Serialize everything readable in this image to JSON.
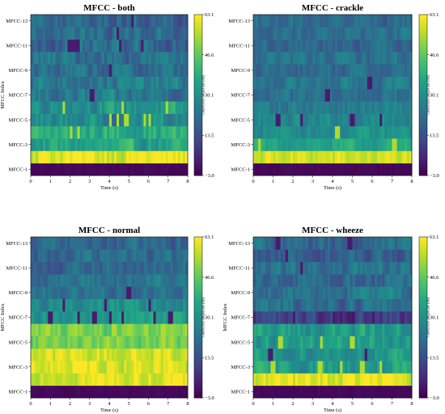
{
  "figure": {
    "colormap": "viridis"
  },
  "chart_data": [
    {
      "type": "heatmap",
      "title": "MFCC - both",
      "xlabel": "Time (s)",
      "ylabel": "MFCC Index",
      "xticks": [
        "0",
        "1",
        "2",
        "3",
        "4",
        "5",
        "6",
        "7",
        "8"
      ],
      "yticks": [
        "MFCC-1",
        "MFCC-3",
        "MFCC-5",
        "MFCC-7",
        "MFCC-9",
        "MFCC-11",
        "MFCC-13"
      ],
      "xlim": [
        0,
        8
      ],
      "rows": 13,
      "colorbar": {
        "label": "Coefficient Amplitude (dB)",
        "ticks": [
          "63.1",
          "46.6",
          "30.1",
          "13.5",
          "−3.0"
        ],
        "range": [
          -3.0,
          63.1
        ]
      },
      "row_levels": [
        0.02,
        0.97,
        0.57,
        0.62,
        0.48,
        0.52,
        0.4,
        0.42,
        0.36,
        0.38,
        0.34,
        0.36,
        0.33
      ],
      "variation": 0.17,
      "hotspots": [
        [
          3,
          0.25
        ],
        [
          3,
          0.3
        ],
        [
          4,
          0.5
        ],
        [
          4,
          0.55
        ],
        [
          4,
          0.6
        ],
        [
          4,
          0.72
        ],
        [
          4,
          0.75
        ],
        [
          5,
          0.2
        ],
        [
          5,
          0.58
        ],
        [
          5,
          0.86
        ]
      ],
      "darkspots": [
        [
          10,
          0.24
        ],
        [
          10,
          0.27
        ],
        [
          10,
          0.3
        ],
        [
          10,
          0.56
        ],
        [
          10,
          0.7
        ],
        [
          6,
          0.38
        ],
        [
          8,
          0.5
        ],
        [
          11,
          0.55
        ],
        [
          12,
          0.64
        ]
      ]
    },
    {
      "type": "heatmap",
      "title": "MFCC - crackle",
      "xlabel": "Time (s)",
      "ylabel": "",
      "xticks": [
        "0",
        "1",
        "2",
        "3",
        "4",
        "5",
        "6",
        "7",
        "8"
      ],
      "yticks": [
        "MFCC-1",
        "MFCC-3",
        "MFCC-5",
        "MFCC-7",
        "MFCC-9",
        "MFCC-11",
        "MFCC-13"
      ],
      "xlim": [
        0,
        8
      ],
      "rows": 13,
      "colorbar": {
        "label": "Coefficient Amplitude (dB)",
        "ticks": [
          "63.1",
          "46.6",
          "30.1",
          "13.5",
          "−3.0"
        ],
        "range": [
          -3.0,
          63.1
        ]
      },
      "row_levels": [
        0.02,
        0.92,
        0.58,
        0.5,
        0.46,
        0.42,
        0.36,
        0.4,
        0.36,
        0.38,
        0.35,
        0.37,
        0.35
      ],
      "variation": 0.12,
      "hotspots": [
        [
          2,
          0.03
        ],
        [
          2,
          0.88
        ],
        [
          3,
          0.52
        ]
      ],
      "darkspots": [
        [
          4,
          0.15
        ],
        [
          4,
          0.3
        ],
        [
          4,
          0.62
        ],
        [
          4,
          0.8
        ],
        [
          6,
          0.46
        ],
        [
          7,
          0.73
        ]
      ]
    },
    {
      "type": "heatmap",
      "title": "MFCC - normal",
      "xlabel": "Time (s)",
      "ylabel": "MFCC Index",
      "xticks": [
        "0",
        "1",
        "2",
        "3",
        "4",
        "5",
        "6",
        "7",
        "8"
      ],
      "yticks": [
        "MFCC-1",
        "MFCC-3",
        "MFCC-5",
        "MFCC-7",
        "MFCC-9",
        "MFCC-11",
        "MFCC-13"
      ],
      "xlim": [
        0,
        8
      ],
      "rows": 13,
      "colorbar": {
        "label": "Coefficient Amplitude (dB)",
        "ticks": [
          "63.1",
          "46.6",
          "30.1",
          "13.5",
          "−3.0"
        ],
        "range": [
          -3.0,
          63.1
        ]
      },
      "row_levels": [
        0.02,
        0.96,
        0.96,
        0.93,
        0.8,
        0.78,
        0.54,
        0.5,
        0.38,
        0.38,
        0.33,
        0.35,
        0.32
      ],
      "variation": 0.14,
      "hotspots": [
        [
          5,
          0.1
        ],
        [
          5,
          0.28
        ],
        [
          5,
          0.52
        ],
        [
          5,
          0.84
        ]
      ],
      "darkspots": [
        [
          6,
          0.12
        ],
        [
          6,
          0.3
        ],
        [
          6,
          0.4
        ],
        [
          6,
          0.5
        ],
        [
          6,
          0.58
        ],
        [
          6,
          0.78
        ],
        [
          6,
          0.88
        ],
        [
          7,
          0.2
        ],
        [
          7,
          0.47
        ],
        [
          7,
          0.75
        ],
        [
          8,
          0.62
        ]
      ]
    },
    {
      "type": "heatmap",
      "title": "MFCC - wheeze",
      "xlabel": "Time (s)",
      "ylabel": "MFCC Index",
      "xticks": [
        "0",
        "1",
        "2",
        "3",
        "4",
        "5",
        "6",
        "7",
        "8"
      ],
      "yticks": [
        "MFCC-1",
        "MFCC-3",
        "MFCC-5",
        "MFCC-7",
        "MFCC-9",
        "MFCC-11",
        "MFCC-13"
      ],
      "xlim": [
        0,
        8
      ],
      "rows": 13,
      "colorbar": {
        "label": "Coefficient Amplitude (dB)",
        "ticks": [
          "63.1",
          "46.6",
          "30.1",
          "13.5",
          "−3.0"
        ],
        "range": [
          -3.0,
          63.1
        ]
      },
      "row_levels": [
        0.02,
        0.95,
        0.55,
        0.52,
        0.55,
        0.54,
        0.18,
        0.36,
        0.4,
        0.34,
        0.36,
        0.3,
        0.34
      ],
      "variation": 0.16,
      "hotspots": [
        [
          2,
          0.12
        ],
        [
          2,
          0.41
        ],
        [
          2,
          0.55
        ],
        [
          2,
          0.68
        ],
        [
          2,
          0.8
        ],
        [
          4,
          0.16
        ],
        [
          4,
          0.42
        ],
        [
          4,
          0.62
        ]
      ],
      "darkspots": [
        [
          3,
          0.1
        ],
        [
          3,
          0.7
        ],
        [
          6,
          0.25
        ],
        [
          6,
          0.5
        ],
        [
          6,
          0.75
        ],
        [
          10,
          0.3
        ],
        [
          11,
          0.2
        ],
        [
          12,
          0.15
        ],
        [
          12,
          0.6
        ]
      ]
    }
  ]
}
